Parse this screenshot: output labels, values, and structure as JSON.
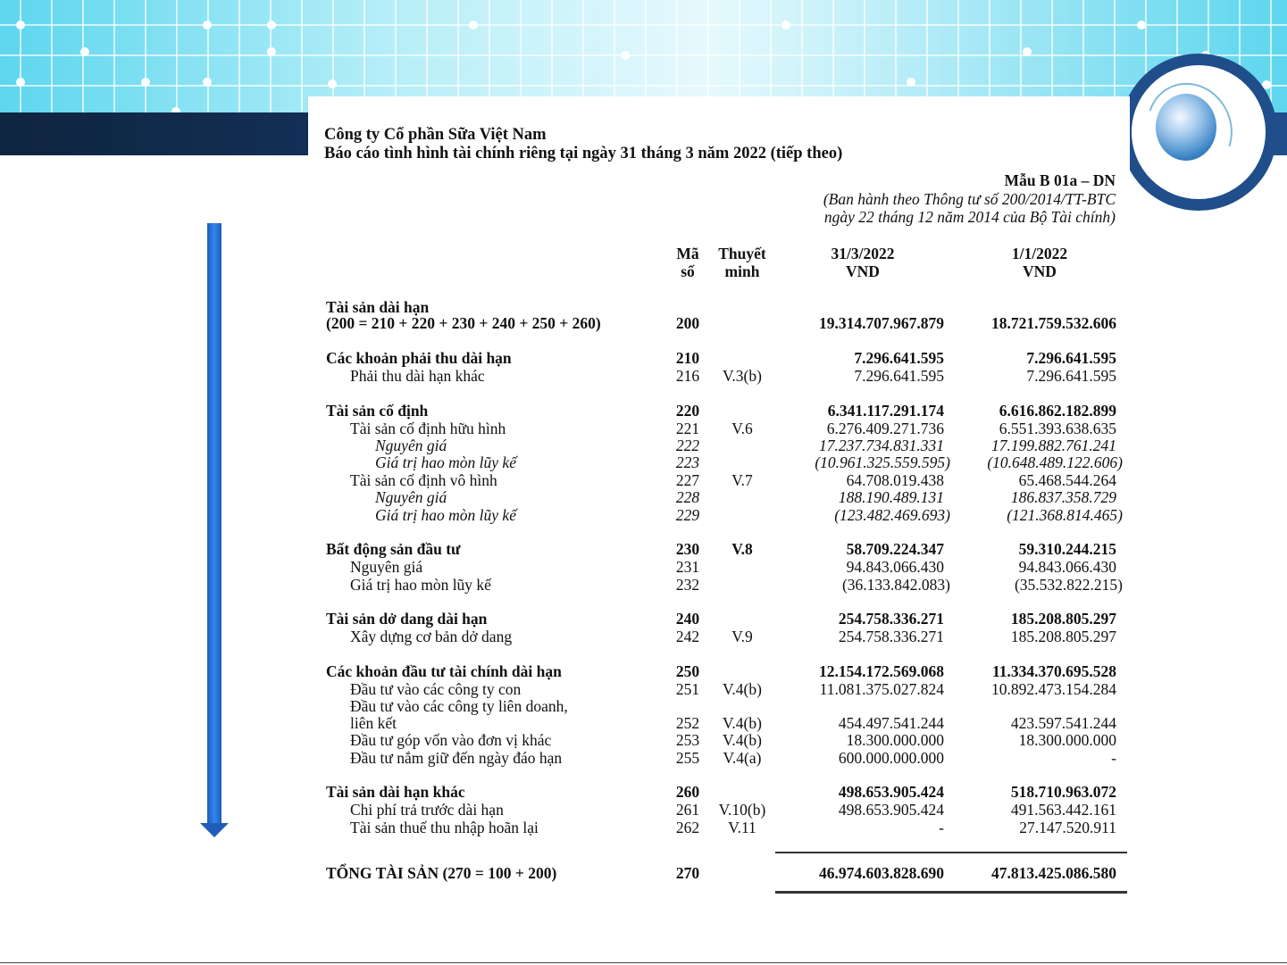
{
  "document": {
    "company": "Công ty Cổ phần Sữa Việt Nam",
    "report_title": "Báo cáo tình hình tài chính riêng tại ngày 31 tháng 3 năm 2022 (tiếp theo)",
    "form_code": "Mẫu B 01a – DN",
    "form_note_line1": "(Ban hành theo Thông tư số 200/2014/TT-BTC",
    "form_note_line2": "ngày 22 tháng 12 năm 2014 của Bộ Tài chính)",
    "headers": {
      "code_line1": "Mã",
      "code_line2": "số",
      "note_line1": "Thuyết",
      "note_line2": "minh",
      "col1_line1": "31/3/2022",
      "col1_line2": "VND",
      "col2_line1": "1/1/2022",
      "col2_line2": "VND"
    },
    "rows": [
      {
        "label": "Tài sản dài hạn",
        "level": 0,
        "style": "bold",
        "code": "",
        "note": "",
        "v1": "",
        "v2": ""
      },
      {
        "label": "(200 = 210 + 220 + 230 + 240 + 250 + 260)",
        "level": 0,
        "style": "bold",
        "code": "200",
        "note": "",
        "v1": "19.314.707.967.879",
        "v2": "18.721.759.532.606"
      },
      {
        "label": "Các khoản phải thu dài hạn",
        "level": 0,
        "style": "bold",
        "code": "210",
        "note": "",
        "v1": "7.296.641.595",
        "v2": "7.296.641.595"
      },
      {
        "label": "Phải thu dài hạn khác",
        "level": 1,
        "style": "normal",
        "code": "216",
        "note": "V.3(b)",
        "v1": "7.296.641.595",
        "v2": "7.296.641.595"
      },
      {
        "label": "Tài sản cố định",
        "level": 0,
        "style": "bold",
        "code": "220",
        "note": "",
        "v1": "6.341.117.291.174",
        "v2": "6.616.862.182.899"
      },
      {
        "label": "Tài sản cố định hữu hình",
        "level": 1,
        "style": "normal",
        "code": "221",
        "note": "V.6",
        "v1": "6.276.409.271.736",
        "v2": "6.551.393.638.635"
      },
      {
        "label": "Nguyên giá",
        "level": 2,
        "style": "italic",
        "code": "222",
        "note": "",
        "v1": "17.237.734.831.331",
        "v2": "17.199.882.761.241"
      },
      {
        "label": "Giá trị hao mòn lũy kế",
        "level": 2,
        "style": "italic",
        "code": "223",
        "note": "",
        "v1": "(10.961.325.559.595)",
        "v2": "(10.648.489.122.606)"
      },
      {
        "label": "Tài sản cố định vô hình",
        "level": 1,
        "style": "normal",
        "code": "227",
        "note": "V.7",
        "v1": "64.708.019.438",
        "v2": "65.468.544.264"
      },
      {
        "label": "Nguyên giá",
        "level": 2,
        "style": "italic",
        "code": "228",
        "note": "",
        "v1": "188.190.489.131",
        "v2": "186.837.358.729"
      },
      {
        "label": "Giá trị hao mòn lũy kế",
        "level": 2,
        "style": "italic",
        "code": "229",
        "note": "",
        "v1": "(123.482.469.693)",
        "v2": "(121.368.814.465)"
      },
      {
        "label": "Bất động sản đầu tư",
        "level": 0,
        "style": "bold",
        "code": "230",
        "note": "V.8",
        "v1": "58.709.224.347",
        "v2": "59.310.244.215"
      },
      {
        "label": "Nguyên giá",
        "level": 1,
        "style": "normal",
        "code": "231",
        "note": "",
        "v1": "94.843.066.430",
        "v2": "94.843.066.430"
      },
      {
        "label": "Giá trị hao mòn lũy kế",
        "level": 1,
        "style": "normal",
        "code": "232",
        "note": "",
        "v1": "(36.133.842.083)",
        "v2": "(35.532.822.215)"
      },
      {
        "label": "Tài sản dở dang dài hạn",
        "level": 0,
        "style": "bold",
        "code": "240",
        "note": "",
        "v1": "254.758.336.271",
        "v2": "185.208.805.297"
      },
      {
        "label": "Xây dựng cơ bản dở dang",
        "level": 1,
        "style": "normal",
        "code": "242",
        "note": "V.9",
        "v1": "254.758.336.271",
        "v2": "185.208.805.297"
      },
      {
        "label": "Các khoản đầu tư tài chính dài hạn",
        "level": 0,
        "style": "bold",
        "code": "250",
        "note": "",
        "v1": "12.154.172.569.068",
        "v2": "11.334.370.695.528"
      },
      {
        "label": "Đầu tư vào các công ty con",
        "level": 1,
        "style": "normal",
        "code": "251",
        "note": "V.4(b)",
        "v1": "11.081.375.027.824",
        "v2": "10.892.473.154.284"
      },
      {
        "label": "Đầu tư vào các công ty liên doanh,",
        "level": 1,
        "style": "normal",
        "code": "",
        "note": "",
        "v1": "",
        "v2": ""
      },
      {
        "label": "liên kết",
        "level": 1,
        "style": "normal",
        "code": "252",
        "note": "V.4(b)",
        "v1": "454.497.541.244",
        "v2": "423.597.541.244"
      },
      {
        "label": "Đầu tư góp vốn vào đơn vị khác",
        "level": 1,
        "style": "normal",
        "code": "253",
        "note": "V.4(b)",
        "v1": "18.300.000.000",
        "v2": "18.300.000.000"
      },
      {
        "label": "Đầu tư nắm giữ đến ngày đáo hạn",
        "level": 1,
        "style": "normal",
        "code": "255",
        "note": "V.4(a)",
        "v1": "600.000.000.000",
        "v2": "-"
      },
      {
        "label": "Tài sản dài hạn khác",
        "level": 0,
        "style": "bold",
        "code": "260",
        "note": "",
        "v1": "498.653.905.424",
        "v2": "518.710.963.072"
      },
      {
        "label": "Chi phí trả trước dài hạn",
        "level": 1,
        "style": "normal",
        "code": "261",
        "note": "V.10(b)",
        "v1": "498.653.905.424",
        "v2": "491.563.442.161"
      },
      {
        "label": "Tài sản thuế thu nhập hoãn lại",
        "level": 1,
        "style": "normal",
        "code": "262",
        "note": "V.11",
        "v1": "-",
        "v2": "27.147.520.911"
      },
      {
        "label": "TỔNG TÀI SẢN (270 = 100 + 200)",
        "level": 0,
        "style": "bold",
        "code": "270",
        "note": "",
        "v1": "46.974.603.828.690",
        "v2": "47.813.425.086.580"
      }
    ]
  },
  "colors": {
    "banner_cyan": "#5dd6ee",
    "navy": "#0f2540",
    "accent_blue": "#1f4e8a",
    "arrow_blue": "#2f86f0"
  }
}
